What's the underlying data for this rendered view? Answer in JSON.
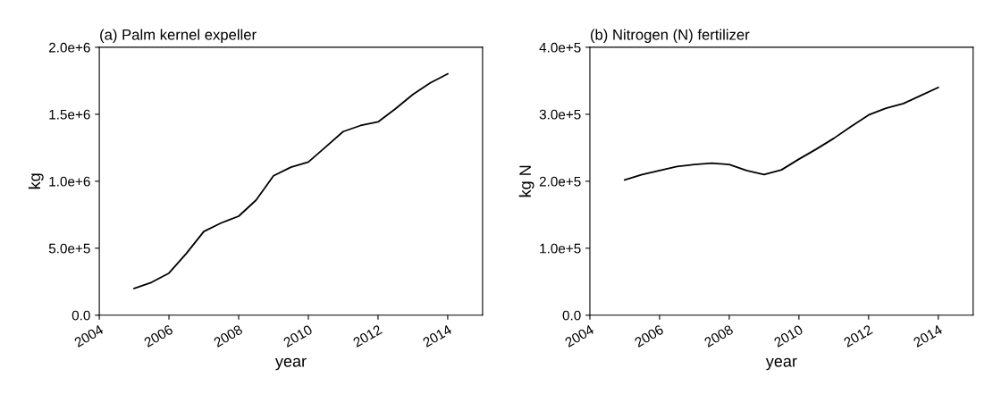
{
  "chart_data": [
    {
      "type": "line",
      "title": "(a) Palm kernel expeller",
      "xlabel": "year",
      "ylabel": "kg",
      "x": [
        2005,
        2005.5,
        2006,
        2006.5,
        2007,
        2007.5,
        2008,
        2008.5,
        2009,
        2009.5,
        2010,
        2010.5,
        2011,
        2011.5,
        2012,
        2012.5,
        2013,
        2013.5,
        2014
      ],
      "series": [
        {
          "color": "#000000",
          "values": [
            200000,
            245000,
            314000,
            461000,
            625000,
            689000,
            739000,
            859000,
            1041000,
            1105000,
            1143000,
            1257000,
            1371000,
            1416000,
            1443000,
            1541000,
            1648000,
            1734000,
            1802000
          ]
        }
      ],
      "xlim": [
        2004,
        2015
      ],
      "xticks": [
        2004,
        2006,
        2008,
        2010,
        2012,
        2014
      ],
      "ylim": [
        0,
        2000000
      ],
      "yticks": [
        {
          "value": 0,
          "label": "0.0"
        },
        {
          "value": 500000,
          "label": "5.0e+5"
        },
        {
          "value": 1000000,
          "label": "1.0e+6"
        },
        {
          "value": 1500000,
          "label": "1.5e+6"
        },
        {
          "value": 2000000,
          "label": "2.0e+6"
        }
      ],
      "grid": false,
      "legend": false
    },
    {
      "type": "line",
      "title": "(b) Nitrogen (N) fertilizer",
      "xlabel": "year",
      "ylabel": "kg N",
      "x": [
        2005,
        2005.5,
        2006,
        2006.5,
        2007,
        2007.5,
        2008,
        2008.5,
        2009,
        2009.5,
        2010,
        2010.5,
        2011,
        2011.5,
        2012,
        2012.5,
        2013,
        2013.5,
        2014
      ],
      "series": [
        {
          "color": "#000000",
          "values": [
            202000,
            210000,
            216000,
            222000,
            225000,
            227000,
            225000,
            216000,
            210000,
            217000,
            233000,
            248000,
            264000,
            282000,
            299000,
            309000,
            316000,
            328000,
            340000
          ]
        }
      ],
      "xlim": [
        2004,
        2015
      ],
      "xticks": [
        2004,
        2006,
        2008,
        2010,
        2012,
        2014
      ],
      "ylim": [
        0,
        400000
      ],
      "yticks": [
        {
          "value": 0,
          "label": "0.0"
        },
        {
          "value": 100000,
          "label": "1.0e+5"
        },
        {
          "value": 200000,
          "label": "2.0e+5"
        },
        {
          "value": 300000,
          "label": "3.0e+5"
        },
        {
          "value": 400000,
          "label": "4.0e+5"
        }
      ],
      "grid": false,
      "legend": false
    }
  ]
}
